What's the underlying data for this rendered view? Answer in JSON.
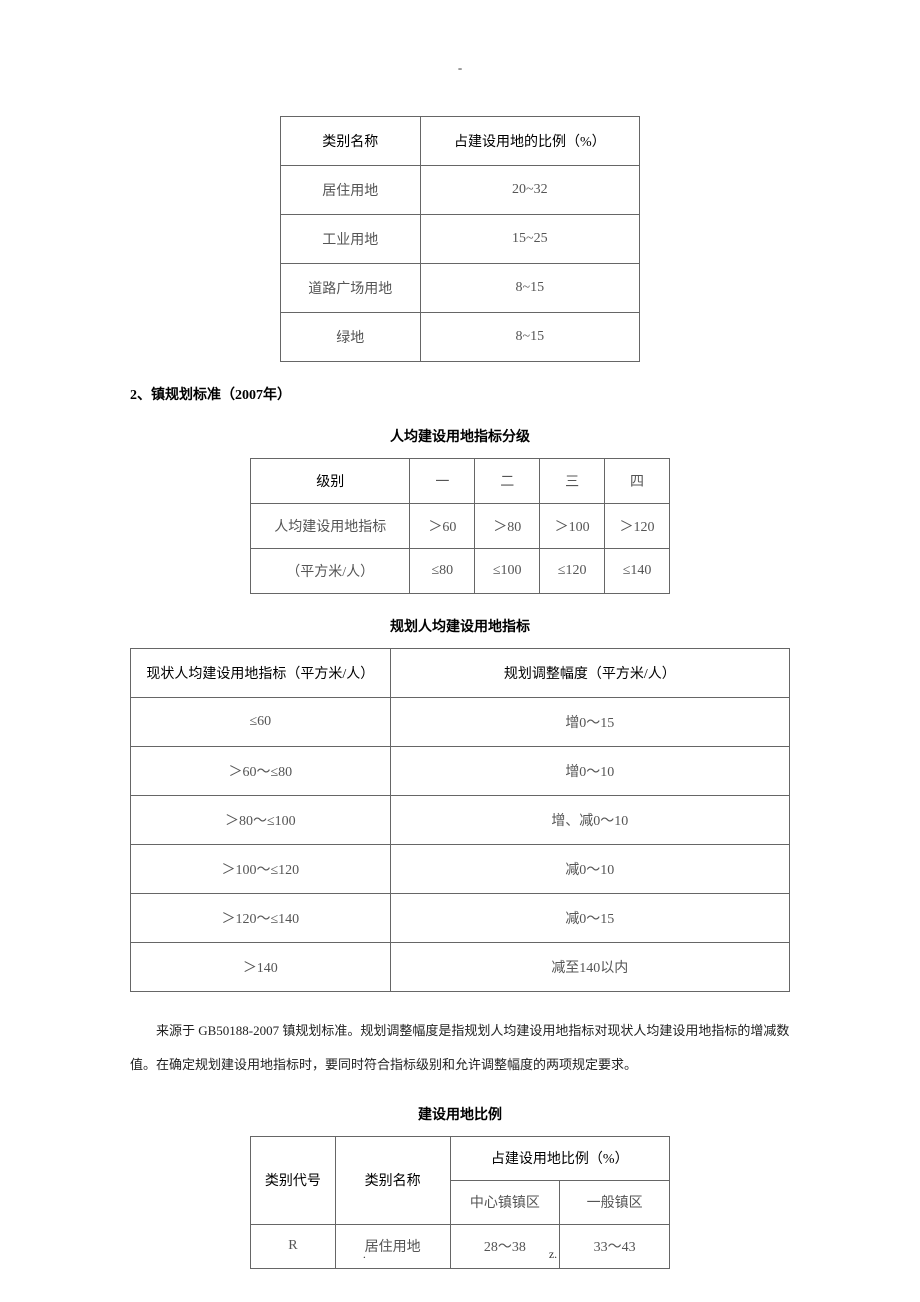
{
  "top_mark": "-",
  "table1": {
    "columns": [
      "类别名称",
      "占建设用地的比例（%）"
    ],
    "rows": [
      [
        "居住用地",
        "20~32"
      ],
      [
        "工业用地",
        "15~25"
      ],
      [
        "道路广场用地",
        "8~15"
      ],
      [
        "绿地",
        "8~15"
      ]
    ]
  },
  "section_heading": "2、镇规划标准（2007年）",
  "table2_title": "人均建设用地指标分级",
  "table2": {
    "head_label": "级别",
    "levels": [
      "一",
      "二",
      "三",
      "四"
    ],
    "row1_label": "人均建设用地指标",
    "row1_vals": [
      "＞60",
      "＞80",
      "＞100",
      "＞120"
    ],
    "row2_label": "（平方米/人）",
    "row2_vals": [
      "≤80",
      "≤100",
      "≤120",
      "≤140"
    ]
  },
  "table3_title": "规划人均建设用地指标",
  "table3": {
    "columns": [
      "现状人均建设用地指标（平方米/人）",
      "规划调整幅度（平方米/人）"
    ],
    "rows": [
      [
        "≤60",
        "增0～15"
      ],
      [
        "＞60～≤80",
        "增0～10"
      ],
      [
        "＞80～≤100",
        "增、减0～10"
      ],
      [
        "＞100～≤120",
        "减0～10"
      ],
      [
        "＞120～≤140",
        "减0～15"
      ],
      [
        "＞140",
        "减至140以内"
      ]
    ]
  },
  "note_text": "来源于 GB50188-2007 镇规划标准。规划调整幅度是指规划人均建设用地指标对现状人均建设用地指标的增减数值。在确定规划建设用地指标时，要同时符合指标级别和允许调整幅度的两项规定要求。",
  "table4_title": "建设用地比例",
  "table4": {
    "col_code": "类别代号",
    "col_name": "类别名称",
    "col_group": "占建设用地比例（%）",
    "sub1": "中心镇镇区",
    "sub2": "一般镇区",
    "rows": [
      [
        "R",
        "居住用地",
        "28～38",
        "33～43"
      ]
    ]
  },
  "footer": {
    "left": ".",
    "right": "z."
  }
}
